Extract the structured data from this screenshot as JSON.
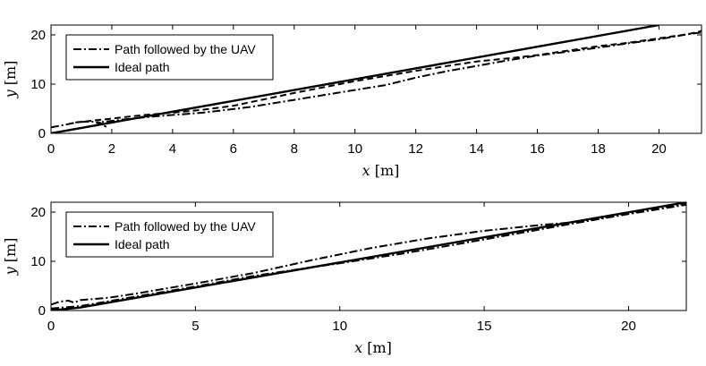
{
  "chart_data": [
    {
      "type": "line",
      "title": "",
      "xlabel": "x",
      "ylabel": "y",
      "unit": "[m]",
      "xlim": [
        0,
        21.4
      ],
      "ylim": [
        0,
        22
      ],
      "xticks": [
        "0",
        "2",
        "4",
        "6",
        "8",
        "10",
        "12",
        "14",
        "16",
        "18",
        "20"
      ],
      "yticks": [
        "0",
        "10",
        "20"
      ],
      "xtick_values": [
        0,
        2,
        4,
        6,
        8,
        10,
        12,
        14,
        16,
        18,
        20
      ],
      "ytick_values": [
        0,
        10,
        20
      ],
      "legend_position": "top-left",
      "series": [
        {
          "name": "Path followed by the UAV",
          "style": "dash-dot",
          "color": "#000000",
          "points": [
            [
              0,
              1.2
            ],
            [
              0.5,
              1.8
            ],
            [
              0.9,
              2.3
            ],
            [
              1.3,
              2.4
            ],
            [
              1.6,
              2.2
            ],
            [
              1.8,
              1.4
            ],
            [
              1.5,
              2.2
            ],
            [
              2.5,
              2.9
            ],
            [
              3.5,
              3.5
            ],
            [
              5,
              4.2
            ],
            [
              6.5,
              5.3
            ],
            [
              8,
              6.8
            ],
            [
              9.5,
              8.3
            ],
            [
              11,
              9.8
            ],
            [
              12,
              11.3
            ],
            [
              13,
              12.6
            ],
            [
              14,
              13.7
            ],
            [
              15,
              14.8
            ],
            [
              16,
              15.8
            ],
            [
              17,
              16.6
            ],
            [
              18,
              17.4
            ],
            [
              19,
              18.3
            ],
            [
              20,
              19.1
            ],
            [
              21,
              20.2
            ],
            [
              21.4,
              20.5
            ]
          ]
        },
        {
          "name": "",
          "style": "dashed",
          "color": "#000000",
          "points": [
            [
              0.8,
              2.2
            ],
            [
              2,
              3
            ],
            [
              3,
              3.7
            ],
            [
              4,
              4.2
            ],
            [
              5,
              4.8
            ],
            [
              6,
              5.6
            ],
            [
              8,
              8.2
            ],
            [
              10,
              10.6
            ],
            [
              12,
              12.7
            ],
            [
              14,
              14.6
            ],
            [
              15,
              15.2
            ],
            [
              16,
              15.9
            ],
            [
              17,
              16.8
            ],
            [
              18,
              17.7
            ],
            [
              19,
              18.4
            ],
            [
              20,
              19.3
            ],
            [
              21,
              20.2
            ],
            [
              21.4,
              20.8
            ]
          ]
        },
        {
          "name": "Ideal path",
          "style": "solid",
          "color": "#000000",
          "points": [
            [
              0,
              0
            ],
            [
              20,
              22
            ]
          ]
        }
      ]
    },
    {
      "type": "line",
      "title": "",
      "xlabel": "x",
      "ylabel": "y",
      "unit": "[m]",
      "xlim": [
        0,
        22
      ],
      "ylim": [
        0,
        22
      ],
      "xticks": [
        "0",
        "5",
        "10",
        "15",
        "20"
      ],
      "yticks": [
        "0",
        "10",
        "20"
      ],
      "xtick_values": [
        0,
        5,
        10,
        15,
        20
      ],
      "ytick_values": [
        0,
        10,
        20
      ],
      "legend_position": "top-left",
      "series": [
        {
          "name": "Path followed by the UAV",
          "style": "dash-dot",
          "color": "#000000",
          "points": [
            [
              0,
              1.2
            ],
            [
              0.3,
              1.8
            ],
            [
              0.6,
              2
            ],
            [
              0.8,
              1.6
            ],
            [
              1,
              2.1
            ],
            [
              2,
              2.6
            ],
            [
              3,
              3.5
            ],
            [
              5,
              5.5
            ],
            [
              7,
              7.6
            ],
            [
              9,
              10.2
            ],
            [
              11,
              12.6
            ],
            [
              13,
              14.6
            ],
            [
              15,
              16.2
            ],
            [
              17,
              17.4
            ],
            [
              18,
              17.9
            ],
            [
              19,
              18.7
            ],
            [
              20,
              19.8
            ],
            [
              21,
              20.9
            ],
            [
              22,
              21.7
            ]
          ]
        },
        {
          "name": "",
          "style": "dash-dot",
          "color": "#000000",
          "points": [
            [
              0,
              0.4
            ],
            [
              1,
              0.9
            ],
            [
              3,
              2.9
            ],
            [
              5,
              4.9
            ],
            [
              7,
              7
            ],
            [
              8,
              7.9
            ],
            [
              10,
              9.6
            ],
            [
              12,
              11.4
            ],
            [
              14,
              13.4
            ],
            [
              16,
              15.5
            ],
            [
              18,
              17.6
            ],
            [
              20,
              19.6
            ],
            [
              22,
              21.5
            ]
          ]
        },
        {
          "name": "Ideal path",
          "style": "solid",
          "color": "#000000",
          "points": [
            [
              0,
              0
            ],
            [
              1,
              0.6
            ],
            [
              22,
              22
            ]
          ]
        }
      ]
    }
  ]
}
